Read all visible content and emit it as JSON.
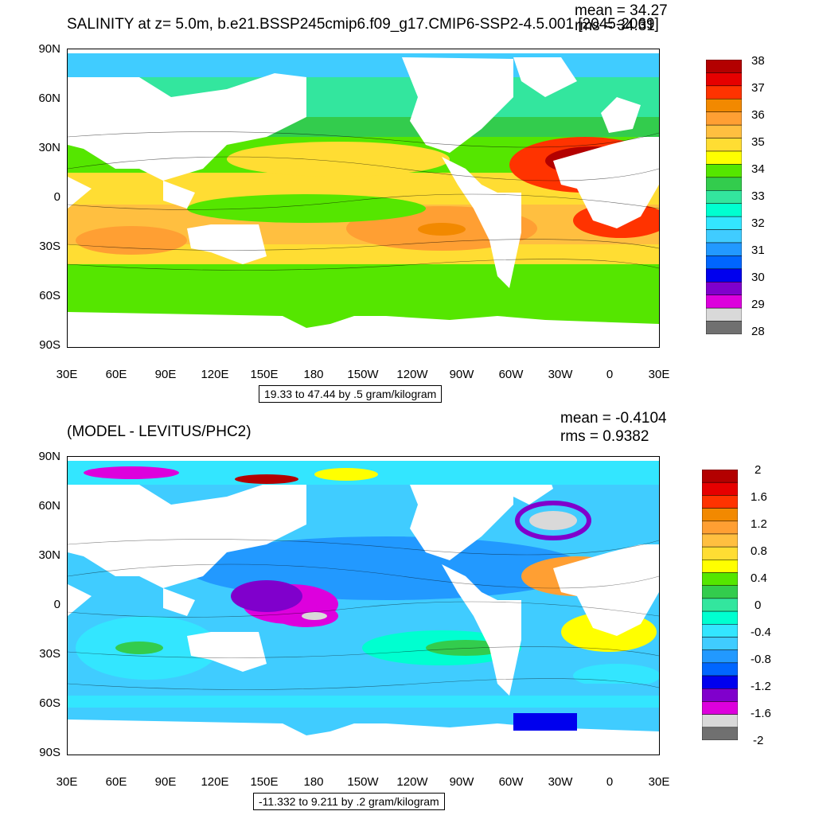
{
  "panels": [
    {
      "title": "SALINITY at z=   5.0m, b.e21.BSSP245cmip6.f09_g17.CMIP6-SSP2-4.5.001 [2045-2069]",
      "mean_text": "mean = 34.27",
      "rms_text": "rms = 34.31",
      "range_text": "19.33 to 47.44 by .5 gram/kilogram",
      "lat_labels": [
        "90N",
        "60N",
        "30N",
        "0",
        "30S",
        "60S",
        "90S"
      ],
      "lon_labels": [
        "30E",
        "60E",
        "90E",
        "120E",
        "150E",
        "180",
        "150W",
        "120W",
        "90W",
        "60W",
        "30W",
        "0",
        "30E"
      ],
      "legend_labels": [
        "38",
        "37",
        "36",
        "35",
        "34",
        "33",
        "32",
        "31",
        "30",
        "29",
        "28"
      ],
      "legend_colors": [
        "#b30000",
        "#e60000",
        "#ff3300",
        "#f28900",
        "#ff9f33",
        "#ffbf40",
        "#ffdd33",
        "#ffff00",
        "#55e600",
        "#33cc4d",
        "#33e69e",
        "#00ffd0",
        "#33e6ff",
        "#40ccff",
        "#2299ff",
        "#0066ff",
        "#0000ee",
        "#8000cc",
        "#dd00dd",
        "#d9d9d9",
        "#707070"
      ]
    },
    {
      "title": "(MODEL - LEVITUS/PHC2)",
      "mean_text": "mean = -0.4104",
      "rms_text": "rms = 0.9382",
      "range_text": "-11.332 to 9.211 by .2 gram/kilogram",
      "lat_labels": [
        "90N",
        "60N",
        "30N",
        "0",
        "30S",
        "60S",
        "90S"
      ],
      "lon_labels": [
        "30E",
        "60E",
        "90E",
        "120E",
        "150E",
        "180",
        "150W",
        "120W",
        "90W",
        "60W",
        "30W",
        "0",
        "30E"
      ],
      "legend_labels": [
        "2",
        "1.6",
        "1.2",
        "0.8",
        "0.4",
        "0",
        "-0.4",
        "-0.8",
        "-1.2",
        "-1.6",
        "-2"
      ],
      "legend_colors": [
        "#b30000",
        "#e60000",
        "#ff3300",
        "#f28900",
        "#ff9f33",
        "#ffbf40",
        "#ffdd33",
        "#ffff00",
        "#55e600",
        "#33cc4d",
        "#33e69e",
        "#00ffd0",
        "#33e6ff",
        "#40ccff",
        "#2299ff",
        "#0066ff",
        "#0000ee",
        "#8000cc",
        "#dd00dd",
        "#d9d9d9",
        "#707070"
      ]
    }
  ],
  "chart_data": [
    {
      "type": "heatmap",
      "title": "SALINITY at z=   5.0m, b.e21.BSSP245cmip6.f09_g17.CMIP6-SSP2-4.5.001 [2045-2069]",
      "xlabel": "",
      "ylabel": "",
      "x_ticks": [
        "30E",
        "60E",
        "90E",
        "120E",
        "150E",
        "180",
        "150W",
        "120W",
        "90W",
        "60W",
        "30W",
        "0",
        "30E"
      ],
      "y_ticks": [
        "90N",
        "60N",
        "30N",
        "0",
        "30S",
        "60S",
        "90S"
      ],
      "contour_min": 19.33,
      "contour_max": 47.44,
      "contour_interval": 0.5,
      "units": "gram/kilogram",
      "mean": 34.27,
      "rms": 34.31,
      "colorbar_range": [
        28,
        38
      ]
    },
    {
      "type": "heatmap",
      "title": "(MODEL - LEVITUS/PHC2)",
      "xlabel": "",
      "ylabel": "",
      "x_ticks": [
        "30E",
        "60E",
        "90E",
        "120E",
        "150E",
        "180",
        "150W",
        "120W",
        "90W",
        "60W",
        "30W",
        "0",
        "30E"
      ],
      "y_ticks": [
        "90N",
        "60N",
        "30N",
        "0",
        "30S",
        "60S",
        "90S"
      ],
      "contour_min": -11.332,
      "contour_max": 9.211,
      "contour_interval": 0.2,
      "units": "gram/kilogram",
      "mean": -0.4104,
      "rms": 0.9382,
      "colorbar_range": [
        -2,
        2
      ]
    }
  ]
}
